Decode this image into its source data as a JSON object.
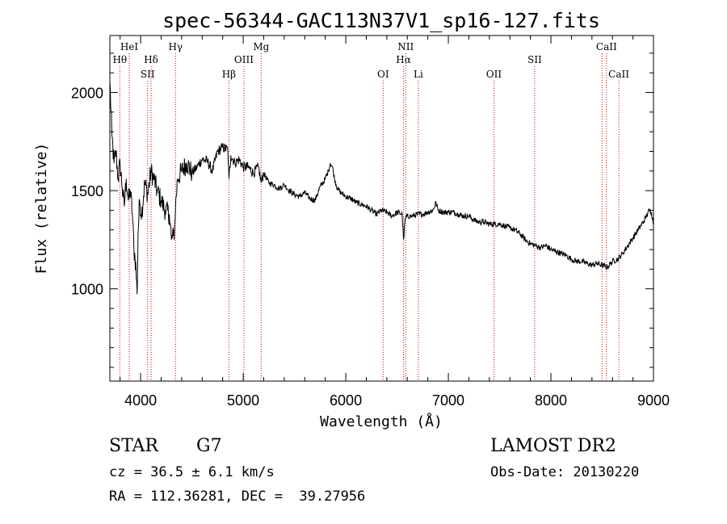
{
  "chart_data": {
    "type": "line",
    "title": "spec-56344-GAC113N37V1_sp16-127.fits",
    "xlabel": "Wavelength (Å)",
    "ylabel": "Flux (relative)",
    "xlim": [
      3700,
      9000
    ],
    "ylim": [
      530,
      2290
    ],
    "xticks": [
      4000,
      5000,
      6000,
      7000,
      8000,
      9000
    ],
    "yticks": [
      1000,
      1500,
      2000
    ],
    "x_tick_labels": [
      "4000",
      "5000",
      "6000",
      "7000",
      "8000",
      "9000"
    ],
    "y_tick_labels": [
      "1000",
      "1500",
      "2000"
    ],
    "grid": false,
    "series": [
      {
        "x": [
          3700,
          3720,
          3740,
          3760,
          3780,
          3800,
          3820,
          3840,
          3860,
          3880,
          3900,
          3920,
          3935,
          3945,
          3955,
          3965,
          3968,
          3975,
          3990,
          4010,
          4040,
          4070,
          4100,
          4130,
          4160,
          4200,
          4240,
          4280,
          4300,
          4320,
          4330,
          4340,
          4360,
          4400,
          4450,
          4500,
          4550,
          4600,
          4650,
          4700,
          4750,
          4800,
          4850,
          4861,
          4880,
          4920,
          4960,
          5000,
          5050,
          5100,
          5150,
          5175,
          5200,
          5250,
          5300,
          5350,
          5400,
          5450,
          5500,
          5550,
          5600,
          5650,
          5700,
          5750,
          5800,
          5830,
          5850,
          5870,
          5890,
          5920,
          5950,
          6000,
          6050,
          6100,
          6150,
          6200,
          6250,
          6300,
          6350,
          6400,
          6450,
          6500,
          6550,
          6563,
          6580,
          6600,
          6650,
          6700,
          6750,
          6800,
          6850,
          6880,
          6900,
          6950,
          7000,
          7050,
          7100,
          7150,
          7200,
          7250,
          7300,
          7350,
          7400,
          7450,
          7500,
          7550,
          7600,
          7650,
          7700,
          7750,
          7800,
          7850,
          7900,
          7950,
          8000,
          8050,
          8100,
          8150,
          8200,
          8250,
          8300,
          8350,
          8400,
          8450,
          8500,
          8550,
          8600,
          8650,
          8700,
          8750,
          8800,
          8850,
          8900,
          8930,
          8960,
          8980,
          9000
        ],
        "y": [
          2060,
          1780,
          1640,
          1700,
          1560,
          1640,
          1520,
          1420,
          1560,
          1450,
          1500,
          1380,
          1200,
          1160,
          1100,
          980,
          1020,
          1280,
          1450,
          1380,
          1540,
          1480,
          1600,
          1560,
          1500,
          1450,
          1400,
          1380,
          1250,
          1270,
          1300,
          1420,
          1560,
          1600,
          1640,
          1590,
          1620,
          1660,
          1650,
          1600,
          1700,
          1720,
          1710,
          1560,
          1680,
          1640,
          1660,
          1620,
          1620,
          1590,
          1620,
          1540,
          1590,
          1540,
          1530,
          1510,
          1530,
          1500,
          1480,
          1470,
          1490,
          1460,
          1450,
          1520,
          1560,
          1600,
          1640,
          1620,
          1560,
          1510,
          1490,
          1470,
          1460,
          1440,
          1430,
          1420,
          1400,
          1380,
          1400,
          1390,
          1370,
          1390,
          1380,
          1250,
          1360,
          1370,
          1370,
          1380,
          1380,
          1390,
          1400,
          1440,
          1400,
          1390,
          1390,
          1390,
          1380,
          1370,
          1370,
          1350,
          1340,
          1340,
          1330,
          1330,
          1330,
          1320,
          1310,
          1300,
          1280,
          1250,
          1230,
          1220,
          1210,
          1220,
          1200,
          1190,
          1180,
          1170,
          1150,
          1140,
          1140,
          1130,
          1120,
          1130,
          1120,
          1110,
          1140,
          1150,
          1180,
          1220,
          1260,
          1300,
          1340,
          1370,
          1400,
          1390,
          1330
        ]
      }
    ],
    "lines_upper": [
      {
        "x": 3889,
        "label": "HeI",
        "row": 1
      },
      {
        "x": 3797,
        "label": "Hθ",
        "row": 2
      },
      {
        "x": 4102,
        "label": "Hδ",
        "row": 2
      },
      {
        "x": 4068,
        "label": "SII",
        "row": 3
      },
      {
        "x": 4340,
        "label": "Hγ",
        "row": 1
      },
      {
        "x": 4861,
        "label": "Hβ",
        "row": 3
      },
      {
        "x": 5007,
        "label": "OIII",
        "row": 2
      },
      {
        "x": 5175,
        "label": "Mg",
        "row": 1
      },
      {
        "x": 6364,
        "label": "OI",
        "row": 3
      },
      {
        "x": 6584,
        "label": "NII",
        "row": 1
      },
      {
        "x": 6563,
        "label": "Hα",
        "row": 2
      },
      {
        "x": 6708,
        "label": "Li",
        "row": 3
      },
      {
        "x": 7444,
        "label": "OII",
        "row": 3
      },
      {
        "x": 7842,
        "label": "SII",
        "row": 2
      },
      {
        "x": 8542,
        "label": "CaII",
        "row": 1
      },
      {
        "x": 8662,
        "label": "CaII",
        "row": 3
      }
    ],
    "lines_extra": [
      8498
    ]
  },
  "info": {
    "object_class": "STAR",
    "subclass": "G7",
    "survey": "LAMOST DR2",
    "cz": "cz = 36.5 ± 6.1 km/s",
    "obs_date": "Obs-Date: 20130220",
    "coords": "RA = 112.36281, DEC =  39.27956"
  },
  "colors": {
    "spectrum": "#000000",
    "line_markers": "#cc0000"
  }
}
